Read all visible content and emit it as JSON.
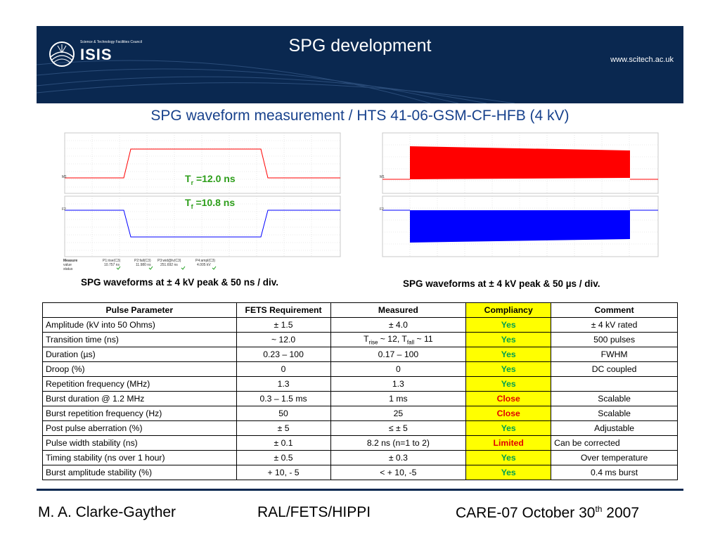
{
  "header": {
    "org_line": "Science & Technology Facilities Council",
    "logo_text": "ISIS",
    "title": "SPG development",
    "url": "www.scitech.ac.uk"
  },
  "slide_title": "SPG waveform measurement / HTS 41-06-GSM-CF-HFB (4 kV)",
  "scope_left": {
    "tr_label": "T",
    "tr_sub": "r",
    "tr_value": " =12.0 ns",
    "tf_label": "T",
    "tf_sub": "f",
    "tf_value": " =10.8 ns",
    "caption": "SPG waveforms at ± 4 kV peak & 50 ns / div.",
    "measure": {
      "row_labels": [
        "Measure",
        "value",
        "status"
      ],
      "params": [
        "P1:rise(C3)",
        "P2:fall(C3)",
        "P3:wid@lv(C3)",
        "P4:ampl(C3)"
      ],
      "values": [
        "10.757 ns",
        "11.980 ns",
        "251.692 ns",
        "4.005 kV"
      ]
    }
  },
  "scope_right": {
    "caption": "SPG waveforms at ± 4 kV peak & 50 µs / div."
  },
  "table": {
    "headers": [
      "Pulse Parameter",
      "FETS Requirement",
      "Measured",
      "Compliancy",
      "Comment"
    ],
    "rows": [
      {
        "param": "Amplitude (kV into 50 Ohms)",
        "req": "± 1.5",
        "meas": "± 4.0",
        "comp": "Yes",
        "comment": "± 4 kV rated"
      },
      {
        "param": "Transition time (ns)",
        "req": "~ 12.0",
        "meas_parts": {
          "t1": "T",
          "s1": "rise",
          "m": " ~ 12, T",
          "s2": "fall",
          "e": " ~ 11"
        },
        "comp": "Yes",
        "comment": "500 pulses"
      },
      {
        "param": "Duration (µs)",
        "req": "0.23 – 100",
        "meas": "0.17 – 100",
        "comp": "Yes",
        "comment": "FWHM"
      },
      {
        "param": "Droop (%)",
        "req": "0",
        "meas": "0",
        "comp": "Yes",
        "comment": "DC coupled"
      },
      {
        "param": "Repetition frequency (MHz)",
        "req": "1.3",
        "meas": "1.3",
        "comp": "Yes",
        "comment": ""
      },
      {
        "param": "Burst duration  @ 1.2 MHz",
        "req": "0.3 – 1.5 ms",
        "meas": "1 ms",
        "comp": "Close",
        "comment": "Scalable"
      },
      {
        "param": "Burst repetition frequency (Hz)",
        "req": "50",
        "meas": "25",
        "comp": "Close",
        "comment": "Scalable"
      },
      {
        "param": "Post pulse aberration (%)",
        "req": "± 5",
        "meas": "≤ ± 5",
        "comp": "Yes",
        "comment": "Adjustable"
      },
      {
        "param": "Pulse width stability (ns)",
        "req": "± 0.1",
        "meas": "8.2 ns (n=1 to 2)",
        "comp": "Limited",
        "comment": "Can be corrected"
      },
      {
        "param": "Timing stability (ns over 1 hour)",
        "req": "± 0.5",
        "meas": "± 0.3",
        "comp": "Yes",
        "comment": "Over temperature"
      },
      {
        "param": "Burst amplitude stability (%)",
        "req": "+ 10, - 5",
        "meas": "< + 10, -5",
        "comp": "Yes",
        "comment": "0.4 ms burst"
      }
    ]
  },
  "footer": {
    "author": "M. A. Clarke-Gayther",
    "project": "RAL/FETS/HIPPI",
    "event": "CARE-07 October 30",
    "event_sup": "th",
    "year": " 2007"
  },
  "colors": {
    "header_bg": "#0a2850",
    "title_blue": "#17418c",
    "yes_green": "#00a050",
    "alert_red": "#e00000",
    "compliancy_yellow": "#ffff00",
    "trace_red": "#ff0000",
    "trace_blue": "#0000ff"
  }
}
